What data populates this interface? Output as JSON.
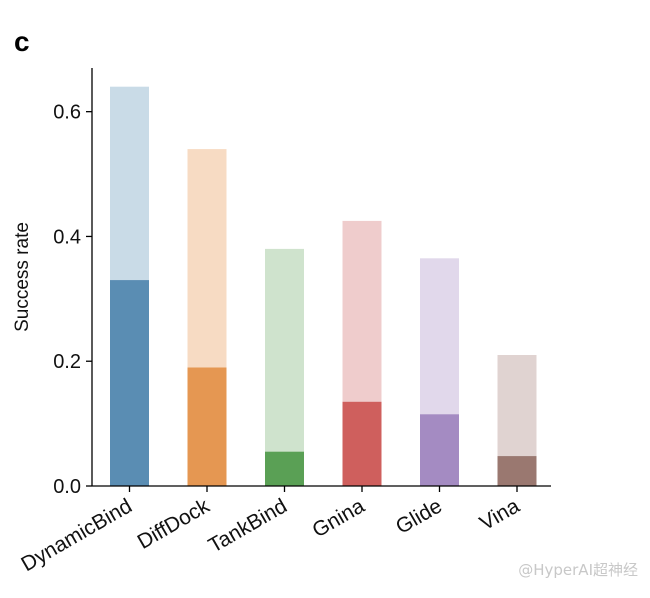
{
  "panel_label": "c",
  "watermark": "@HyperAI超神经",
  "chart_data": {
    "type": "bar",
    "ylabel": "Success rate",
    "xlabel": "",
    "ylim": [
      0,
      0.67
    ],
    "yticks": [
      0.0,
      0.2,
      0.4,
      0.6
    ],
    "ytick_labels": [
      "0.0",
      "0.2",
      "0.4",
      "0.6"
    ],
    "categories": [
      "DynamicBind",
      "DiffDock",
      "TankBind",
      "Gnina",
      "Glide",
      "Vina"
    ],
    "series": [
      {
        "values": [
          0.64,
          0.54,
          0.38,
          0.425,
          0.365,
          0.21
        ],
        "colors": [
          "#c9dbe7",
          "#f7dbc3",
          "#cfe3cd",
          "#efcccc",
          "#e1d8eb",
          "#e0d3d1"
        ]
      },
      {
        "values": [
          0.33,
          0.19,
          0.055,
          0.135,
          0.115,
          0.048
        ],
        "colors": [
          "#5a8db3",
          "#e59752",
          "#5aa055",
          "#cf5f5d",
          "#a48bc2",
          "#9a7870"
        ]
      }
    ],
    "grid": false,
    "legend": "none"
  }
}
